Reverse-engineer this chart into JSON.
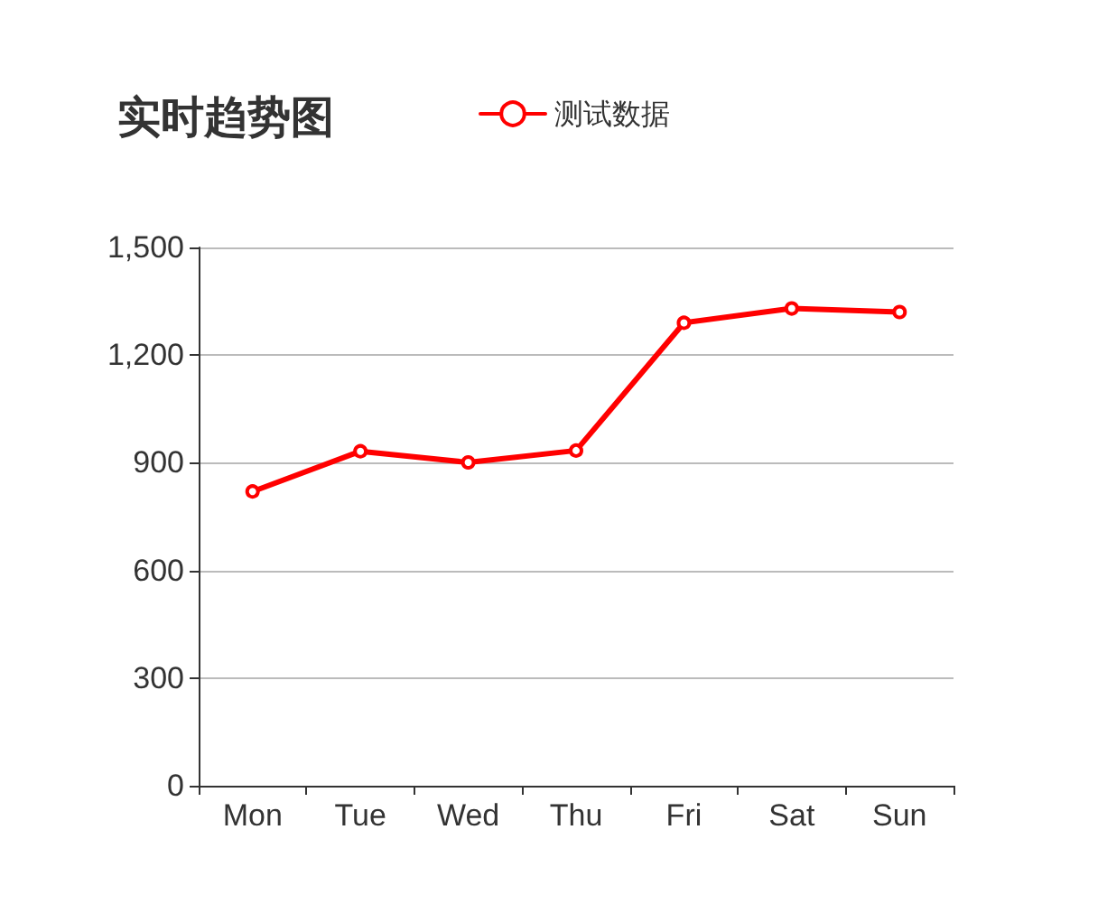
{
  "chart_data": {
    "type": "line",
    "title": "实时趋势图",
    "categories": [
      "Mon",
      "Tue",
      "Wed",
      "Thu",
      "Fri",
      "Sat",
      "Sun"
    ],
    "series": [
      {
        "name": "测试数据",
        "color": "#ff0000",
        "values": [
          820,
          932,
          901,
          934,
          1290,
          1330,
          1320
        ]
      }
    ],
    "ylim": [
      0,
      1500
    ],
    "yticks": [
      0,
      300,
      600,
      900,
      {
        "value": 1200,
        "label": "1,200"
      },
      {
        "value": 1500,
        "label": "1,500"
      }
    ],
    "grid": "y",
    "legend": "top",
    "marker": "circle",
    "line_style": "solid"
  }
}
